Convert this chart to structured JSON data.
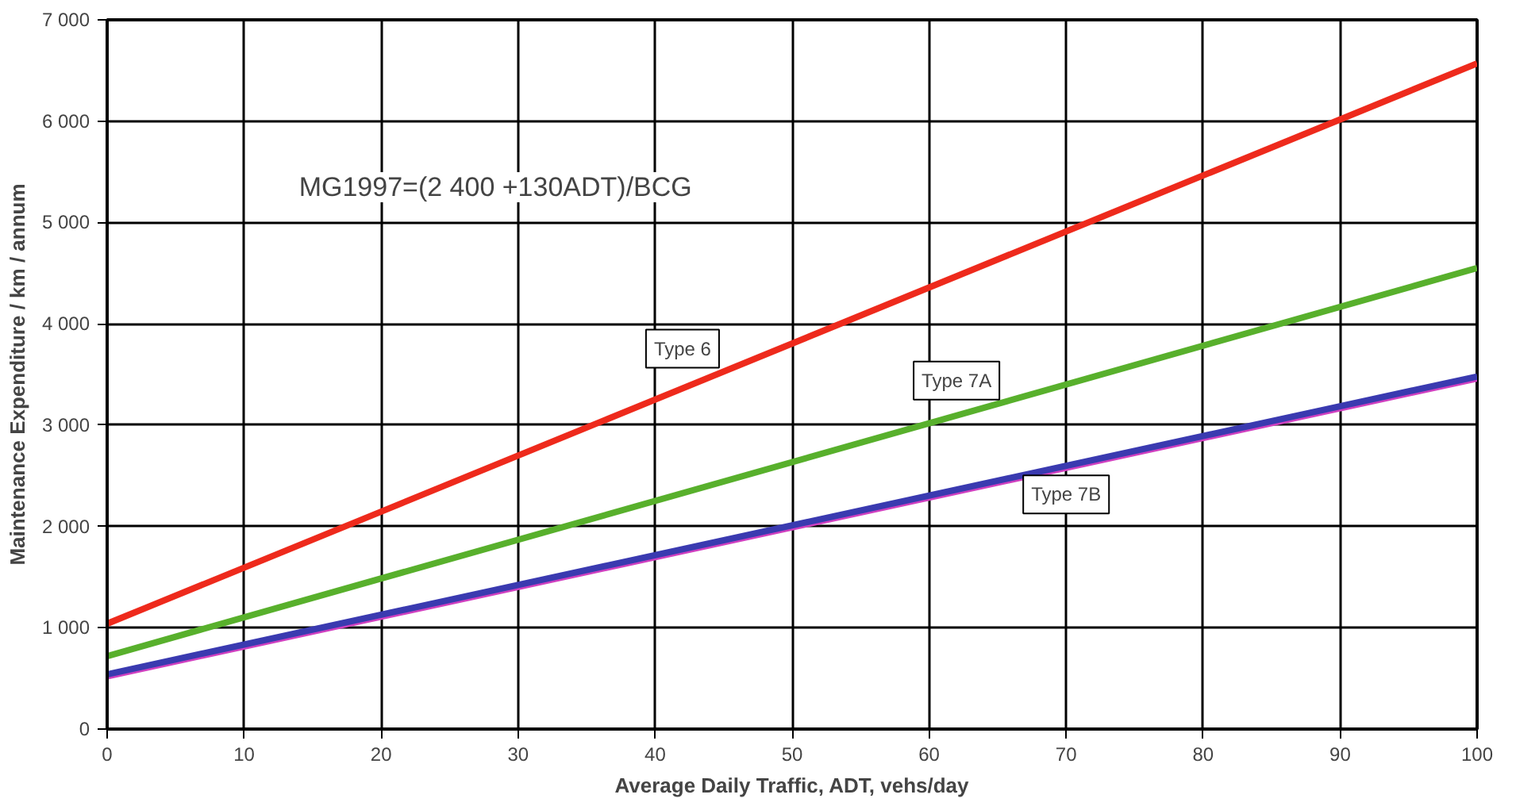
{
  "chart_data": {
    "type": "line",
    "xlabel": "Average Daily Traffic, ADT, vehs/day",
    "ylabel": "Maintenance Expenditure / km / annum",
    "x": [
      0,
      100
    ],
    "series": [
      {
        "color": "#d040c0",
        "values": [
          520,
          3460
        ]
      },
      {
        "name": "Type 7B",
        "color": "#3a3ab0",
        "values": [
          540,
          3480
        ]
      },
      {
        "name": "Type 7A",
        "color": "#58b02c",
        "values": [
          720,
          4550
        ]
      },
      {
        "name": "Type 6",
        "color": "#ee2a1c",
        "values": [
          1040,
          6570
        ]
      }
    ],
    "annotations": [
      "MG1997=(2 400 +130ADT)/BCG"
    ],
    "xlim": [
      0,
      100
    ],
    "xticks": [
      0,
      10,
      20,
      30,
      40,
      50,
      60,
      70,
      80,
      90,
      100
    ],
    "ylim": [
      0,
      7000
    ],
    "yticks": [
      {
        "value": 0,
        "label": "0"
      },
      {
        "value": 1000,
        "label": "1 000"
      },
      {
        "value": 2000,
        "label": "2 000"
      },
      {
        "value": 3000,
        "label": "3 000"
      },
      {
        "value": 4000,
        "label": "4 000"
      },
      {
        "value": 5000,
        "label": "5 000"
      },
      {
        "value": 6000,
        "label": "6 000"
      },
      {
        "value": 7000,
        "label": "7 000"
      }
    ],
    "grid": true,
    "marker": "none",
    "line_style": "solid"
  }
}
